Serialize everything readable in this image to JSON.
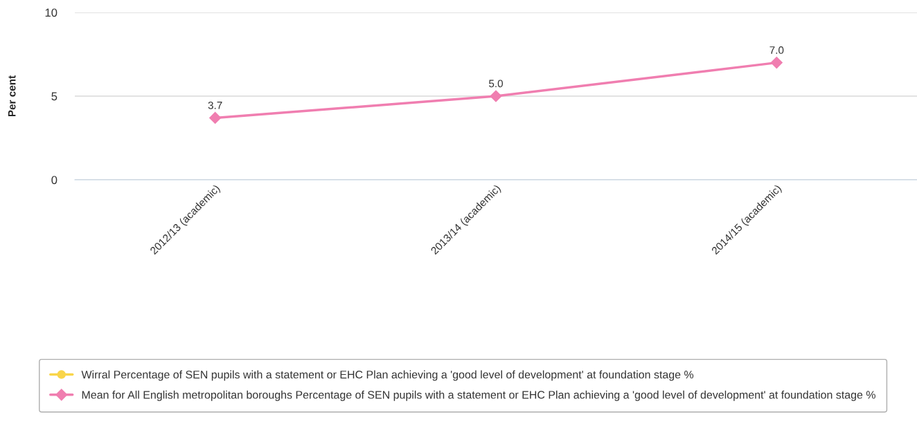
{
  "chart_data": {
    "type": "line",
    "ylabel": "Per cent",
    "categories": [
      "2012/13 (academic)",
      "2013/14 (academic)",
      "2014/15 (academic)"
    ],
    "series": [
      {
        "name": "Wirral Percentage of SEN pupils with a statement or EHC Plan achieving a 'good level of development' at foundation stage %",
        "color": "#f9d54a",
        "marker": "circle",
        "values": [
          null,
          null,
          null
        ]
      },
      {
        "name": "Mean for All English metropolitan boroughs Percentage of SEN pupils with a statement or EHC Plan achieving a 'good level of development' at foundation stage %",
        "color": "#f07eb0",
        "marker": "diamond",
        "values": [
          3.7,
          5.0,
          7.0
        ],
        "value_labels": [
          "3.7",
          "5.0",
          "7.0"
        ]
      }
    ],
    "ylim": [
      0,
      10
    ],
    "yticks": [
      0,
      5,
      10
    ],
    "grid": "y",
    "legend": "bottom"
  }
}
